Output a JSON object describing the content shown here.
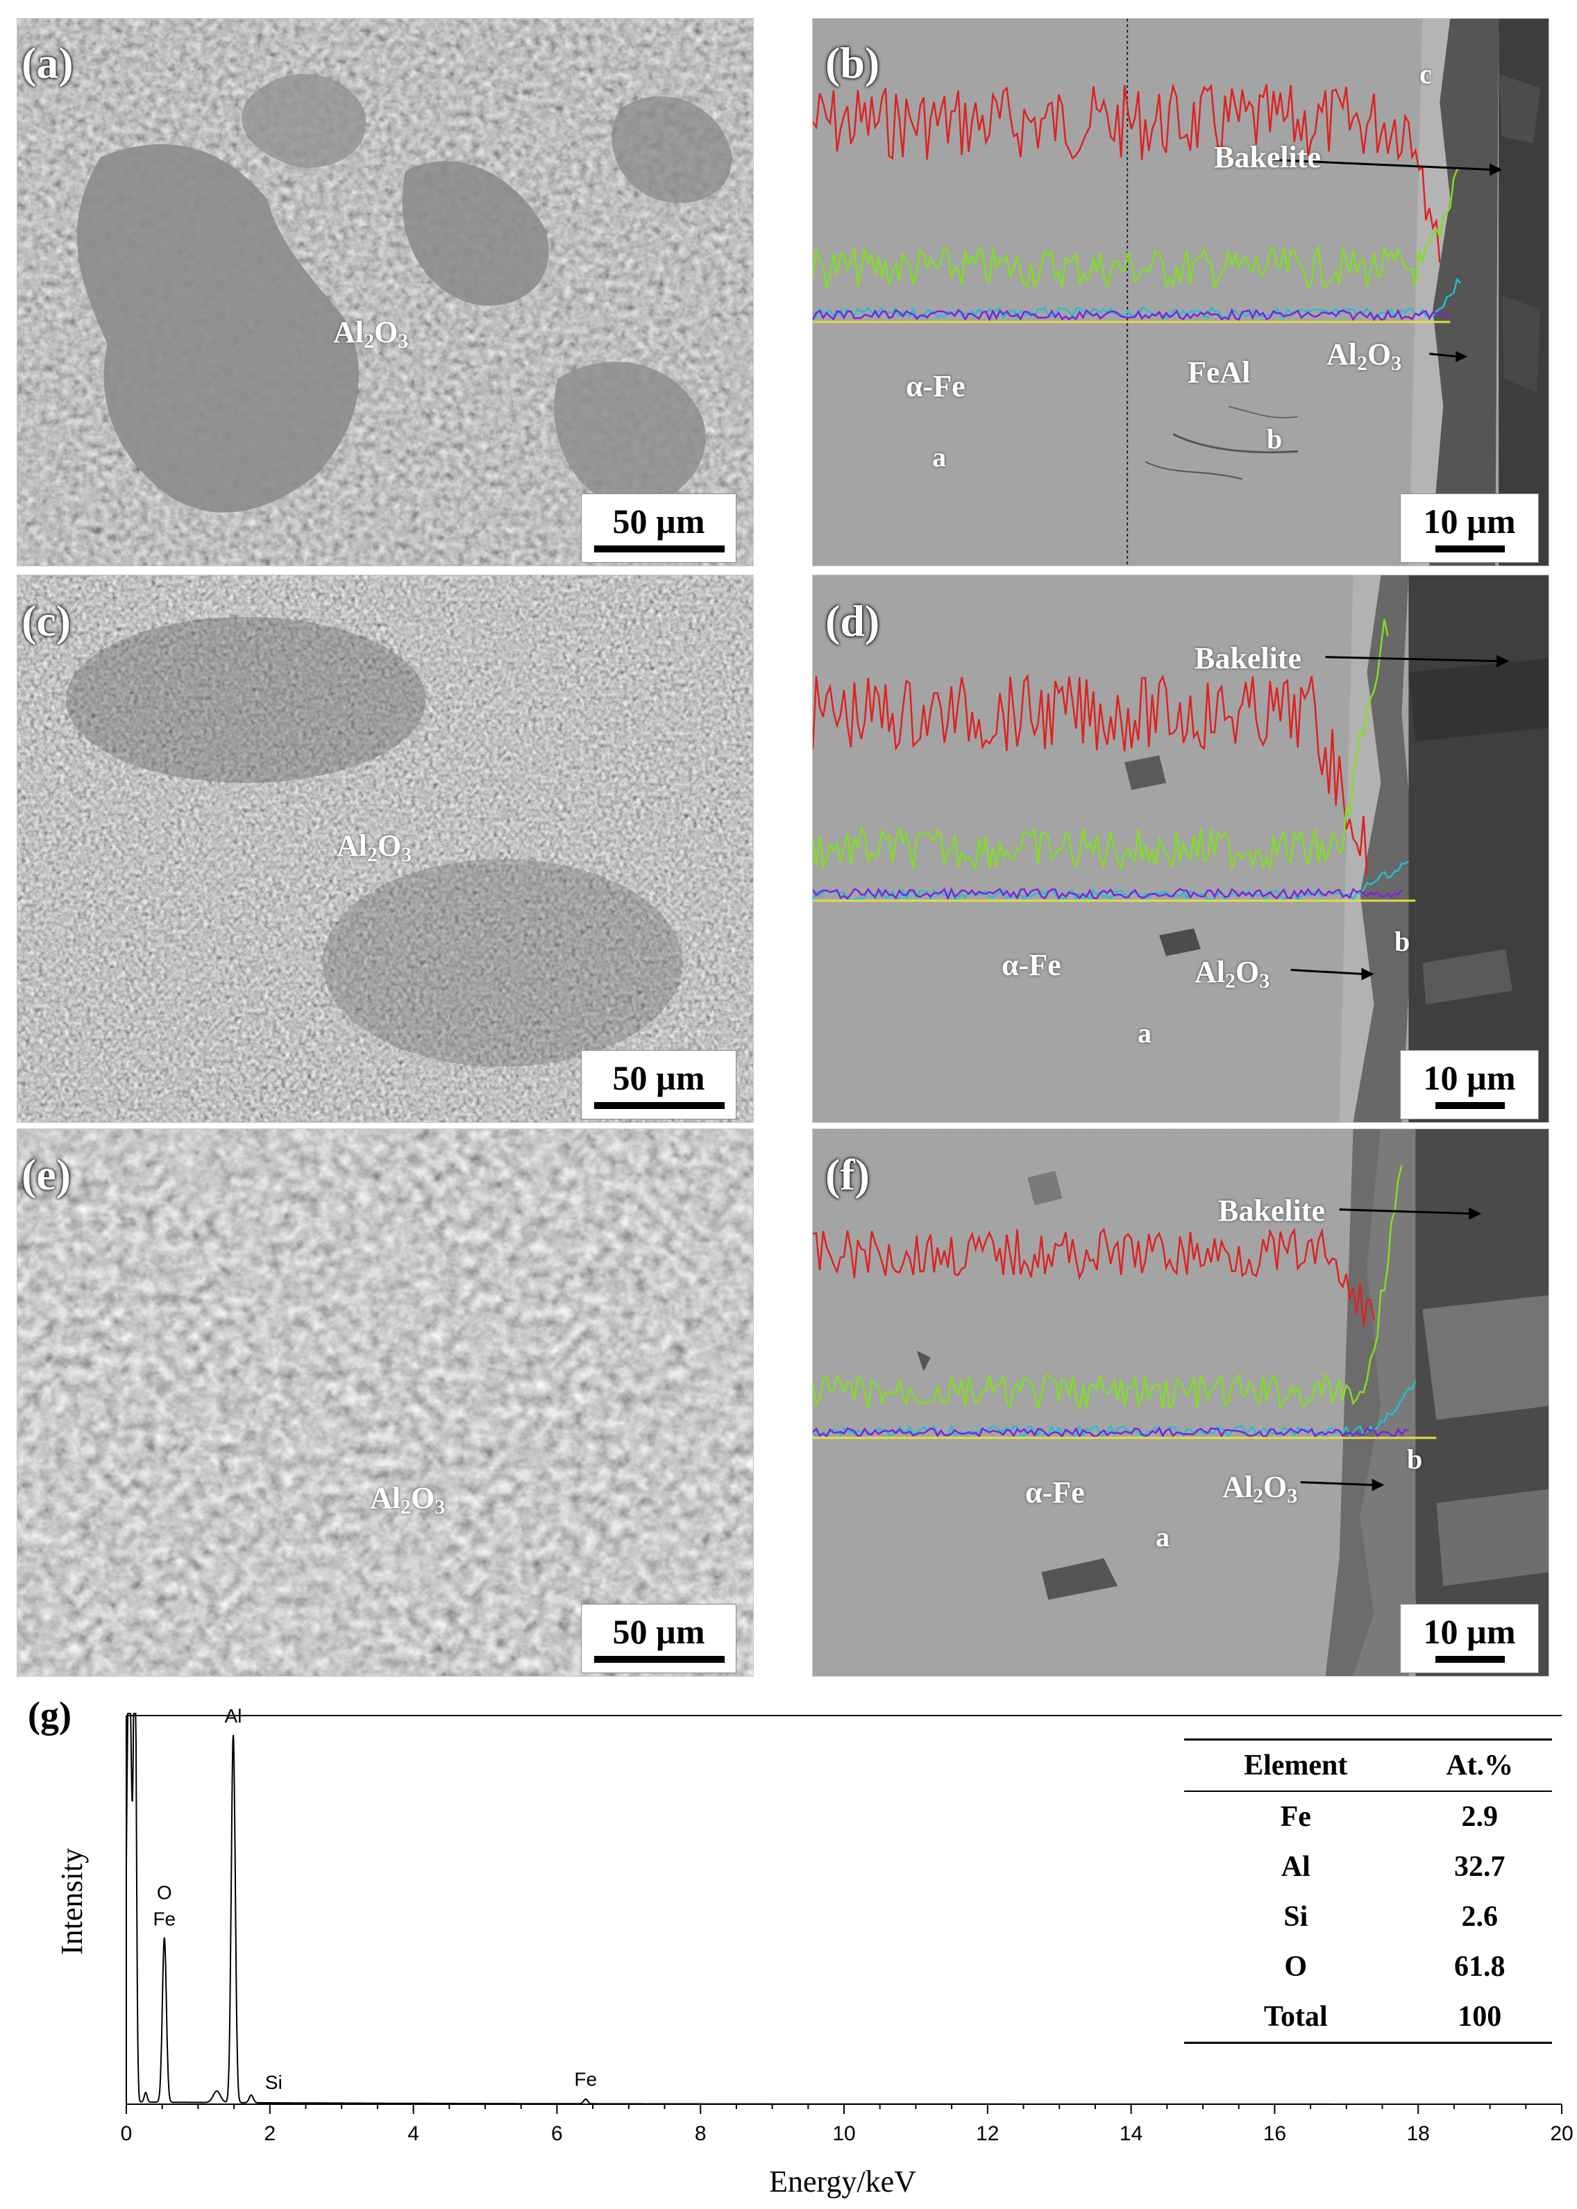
{
  "panels": {
    "a": {
      "label": "(a)",
      "phase": "Al2O3",
      "scale": "50 µm"
    },
    "b": {
      "label": "(b)",
      "phase_a": "α-Fe",
      "phase_b": "FeAl",
      "phase_c": "Al2O3",
      "mount": "Bakelite",
      "pt_a": "a",
      "pt_b": "b",
      "pt_c": "c",
      "scale": "10 µm"
    },
    "c": {
      "label": "(c)",
      "phase": "Al2O3",
      "scale": "50 µm"
    },
    "d": {
      "label": "(d)",
      "phase_a": "α-Fe",
      "phase_c": "Al2O3",
      "mount": "Bakelite",
      "pt_a": "a",
      "pt_b": "b",
      "scale": "10 µm"
    },
    "e": {
      "label": "(e)",
      "phase": "Al2O3",
      "scale": "50 µm"
    },
    "f": {
      "label": "(f)",
      "phase_a": "α-Fe",
      "phase_c": "Al2O3",
      "mount": "Bakelite",
      "pt_a": "a",
      "pt_b": "b",
      "scale": "10 µm"
    }
  },
  "chart_data": {
    "type": "line",
    "label": "(g)",
    "xlabel": "Energy/keV",
    "ylabel": "Intensity",
    "xlim": [
      0,
      20
    ],
    "xticks": [
      0,
      2,
      4,
      6,
      8,
      10,
      12,
      14,
      16,
      18,
      20
    ],
    "peaks": [
      {
        "label": "O",
        "label2": "Fe",
        "x": 0.53,
        "height": 0.43
      },
      {
        "label": "Al",
        "x": 1.49,
        "height": 0.96
      },
      {
        "label": "Si",
        "x": 1.74,
        "height": 0.02
      },
      {
        "label": "Fe",
        "x": 6.4,
        "height": 0.012
      }
    ],
    "table": {
      "headers": [
        "Element",
        "At.%"
      ],
      "rows": [
        [
          "Fe",
          "2.9"
        ],
        [
          "Al",
          "32.7"
        ],
        [
          "Si",
          "2.6"
        ],
        [
          "O",
          "61.8"
        ],
        [
          "Total",
          "100"
        ]
      ]
    }
  },
  "colors": {
    "line_fe": "#e02020",
    "line_al": "#80e020",
    "line_o": "#20c0d0",
    "line_si": "#8020e0",
    "line_c": "#e0e040"
  }
}
